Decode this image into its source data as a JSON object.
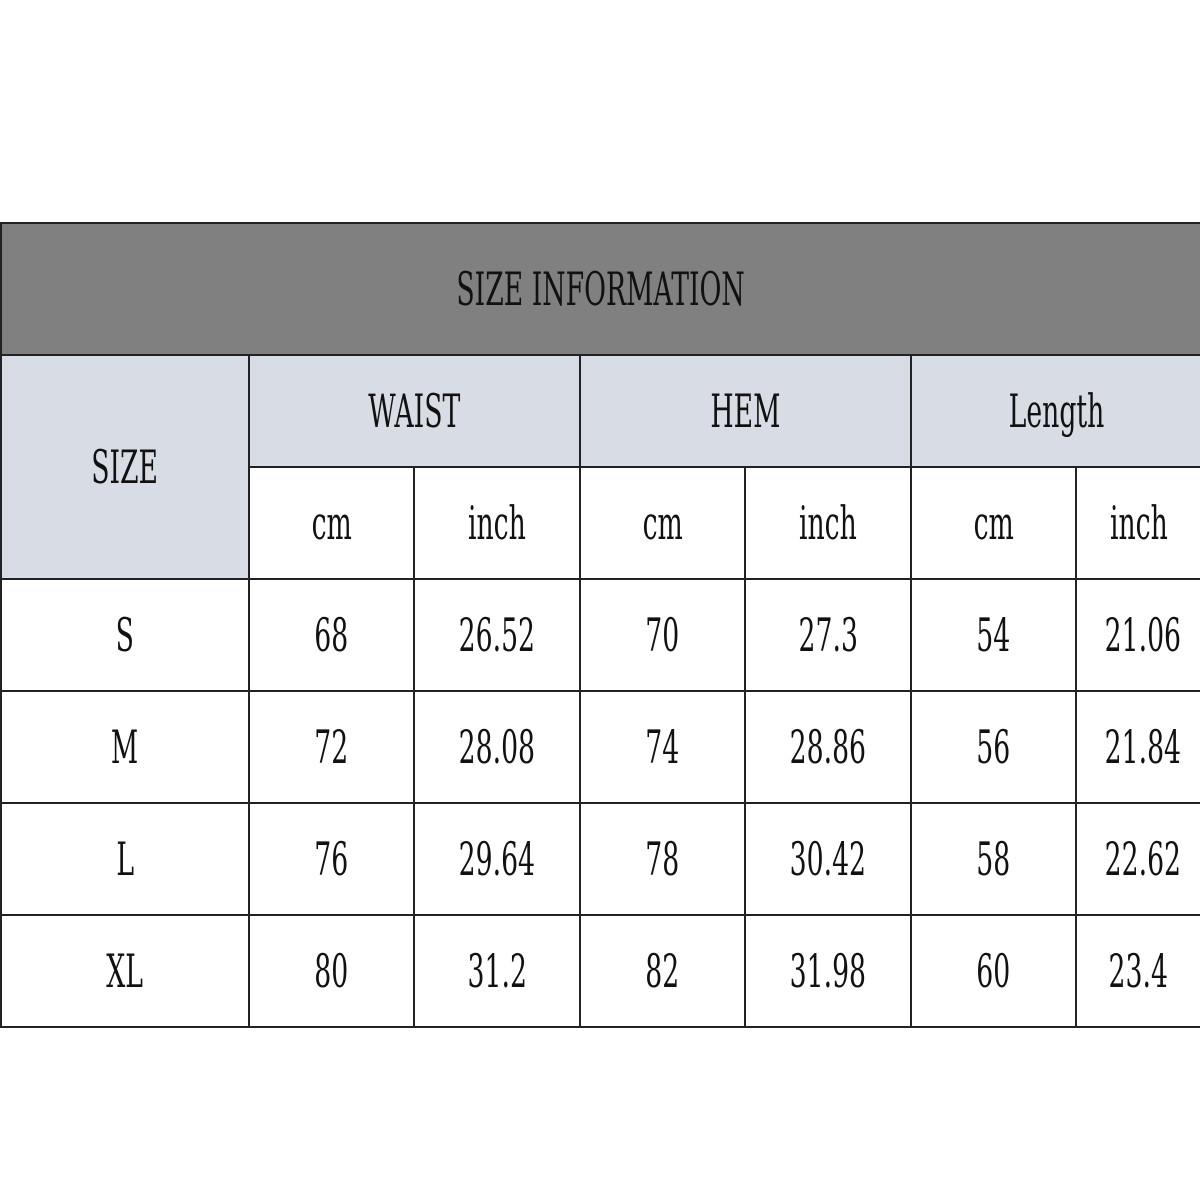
{
  "title": "SIZE INFORMATION",
  "headers": {
    "size": "SIZE",
    "groups": [
      "WAIST",
      "HEM",
      "Length"
    ],
    "units": [
      "cm",
      "inch",
      "cm",
      "inch",
      "cm",
      "inch"
    ]
  },
  "rows": [
    {
      "size": "S",
      "values": [
        "68",
        "26.52",
        "70",
        "27.3",
        "54",
        "21.06"
      ]
    },
    {
      "size": "M",
      "values": [
        "72",
        "28.08",
        "74",
        "28.86",
        "56",
        "21.84"
      ]
    },
    {
      "size": "L",
      "values": [
        "76",
        "29.64",
        "78",
        "30.42",
        "58",
        "22.62"
      ]
    },
    {
      "size": "XL",
      "values": [
        "80",
        "31.2",
        "82",
        "31.98",
        "60",
        "23.4"
      ]
    }
  ],
  "colors": {
    "title_bg": "#808080",
    "header_bg": "#d8dde5",
    "border": "#222222"
  }
}
